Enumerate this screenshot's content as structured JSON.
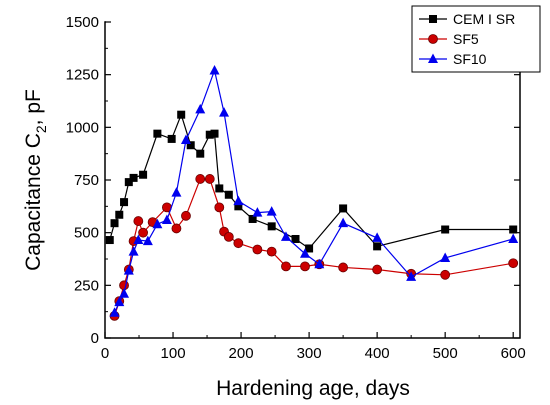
{
  "chart_data": {
    "type": "line",
    "xlabel": "Hardening age, days",
    "ylabel_main": "Capacitance C",
    "ylabel_sub": "2",
    "ylabel_tail": ", pF",
    "xlim": [
      0,
      610
    ],
    "ylim": [
      0,
      1500
    ],
    "xticks": [
      0,
      100,
      200,
      300,
      400,
      500,
      600
    ],
    "yticks": [
      0,
      250,
      500,
      750,
      1000,
      1250,
      1500
    ],
    "grid": false,
    "legend_position": "top-right",
    "series": [
      {
        "name": "CEM I SR",
        "color": "#000000",
        "marker": "square",
        "x": [
          7,
          14,
          21,
          28,
          35,
          42,
          56,
          77,
          98,
          112,
          126,
          140,
          154,
          161,
          168,
          182,
          196,
          217,
          245,
          280,
          300,
          350,
          400,
          500,
          600
        ],
        "y": [
          465,
          545,
          585,
          645,
          740,
          760,
          775,
          970,
          945,
          1060,
          915,
          875,
          965,
          970,
          710,
          680,
          625,
          565,
          530,
          470,
          425,
          615,
          435,
          515,
          515
        ]
      },
      {
        "name": "SF5",
        "color": "#cc0000",
        "marker": "circle",
        "x": [
          14,
          21,
          28,
          35,
          42,
          49,
          56,
          70,
          91,
          105,
          119,
          140,
          154,
          168,
          175,
          182,
          196,
          224,
          245,
          266,
          294,
          315,
          350,
          400,
          450,
          500,
          600
        ],
        "y": [
          105,
          175,
          250,
          325,
          460,
          555,
          500,
          550,
          620,
          520,
          580,
          755,
          755,
          620,
          505,
          480,
          450,
          420,
          410,
          340,
          340,
          350,
          335,
          325,
          305,
          300,
          355
        ]
      },
      {
        "name": "SF10",
        "color": "#0000ee",
        "marker": "triangle",
        "x": [
          14,
          21,
          28,
          35,
          42,
          49,
          63,
          77,
          91,
          105,
          119,
          140,
          161,
          175,
          196,
          224,
          245,
          266,
          294,
          315,
          350,
          400,
          450,
          500,
          600
        ],
        "y": [
          120,
          170,
          210,
          320,
          410,
          465,
          460,
          540,
          560,
          690,
          940,
          1085,
          1270,
          1070,
          650,
          595,
          600,
          480,
          400,
          350,
          545,
          475,
          290,
          380,
          470
        ]
      }
    ]
  }
}
